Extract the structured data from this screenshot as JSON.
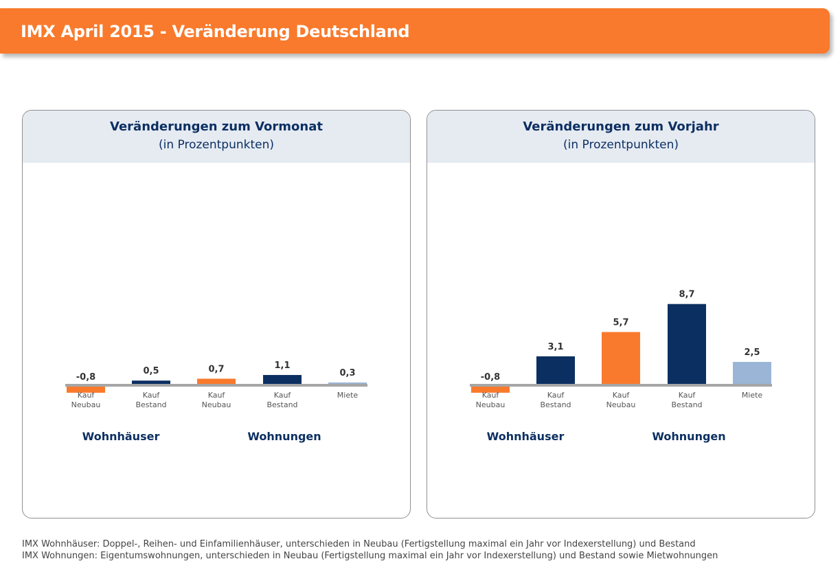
{
  "header": {
    "title": "IMX April 2015 - Veränderung Deutschland"
  },
  "panels": [
    {
      "title": "Veränderungen zum Vormonat",
      "subtitle": "(in Prozentpunkten)"
    },
    {
      "title": "Veränderungen zum Vorjahr",
      "subtitle": "(in Prozentpunkten)"
    }
  ],
  "chart_data": [
    {
      "type": "bar",
      "title": "Veränderungen zum Vormonat",
      "subtitle": "(in Prozentpunkten)",
      "groups": [
        {
          "label": "Wohnhäuser",
          "categories": [
            [
              "Kauf",
              "Neubau"
            ],
            [
              "Kauf",
              "Bestand"
            ]
          ]
        },
        {
          "label": "Wohnungen",
          "categories": [
            [
              "Kauf",
              "Neubau"
            ],
            [
              "Kauf",
              "Bestand"
            ],
            [
              "Miete"
            ]
          ]
        }
      ],
      "categories": [
        "Kauf Neubau",
        "Kauf Bestand",
        "Kauf Neubau",
        "Kauf Bestand",
        "Miete"
      ],
      "values": [
        -0.8,
        0.5,
        0.7,
        1.1,
        0.3
      ],
      "value_labels": [
        "-0,8",
        "0,5",
        "0,7",
        "1,1",
        "0,3"
      ],
      "colors": [
        "#f97a2c",
        "#0c2f62",
        "#f97a2c",
        "#0c2f62",
        "#9bb5d6"
      ]
    },
    {
      "type": "bar",
      "title": "Veränderungen zum Vorjahr",
      "subtitle": "(in Prozentpunkten)",
      "groups": [
        {
          "label": "Wohnhäuser",
          "categories": [
            [
              "Kauf",
              "Neubau"
            ],
            [
              "Kauf",
              "Bestand"
            ]
          ]
        },
        {
          "label": "Wohnungen",
          "categories": [
            [
              "Kauf",
              "Neubau"
            ],
            [
              "Kauf",
              "Bestand"
            ],
            [
              "Miete"
            ]
          ]
        }
      ],
      "categories": [
        "Kauf Neubau",
        "Kauf Bestand",
        "Kauf Neubau",
        "Kauf Bestand",
        "Miete"
      ],
      "values": [
        -0.8,
        3.1,
        5.7,
        8.7,
        2.5
      ],
      "value_labels": [
        "-0,8",
        "3,1",
        "5,7",
        "8,7",
        "2,5"
      ],
      "colors": [
        "#f97a2c",
        "#0c2f62",
        "#f97a2c",
        "#0c2f62",
        "#9bb5d6"
      ]
    }
  ],
  "footnotes": [
    "IMX Wohnhäuser: Doppel-, Reihen- und Einfamilienhäuser, unterschieden in Neubau (Fertigstellung maximal ein Jahr vor Indexerstellung) und Bestand",
    "IMX Wohnungen: Eigentumswohnungen, unterschieden in Neubau (Fertigstellung maximal ein Jahr vor Indexerstellung) und Bestand sowie Mietwohnungen"
  ]
}
